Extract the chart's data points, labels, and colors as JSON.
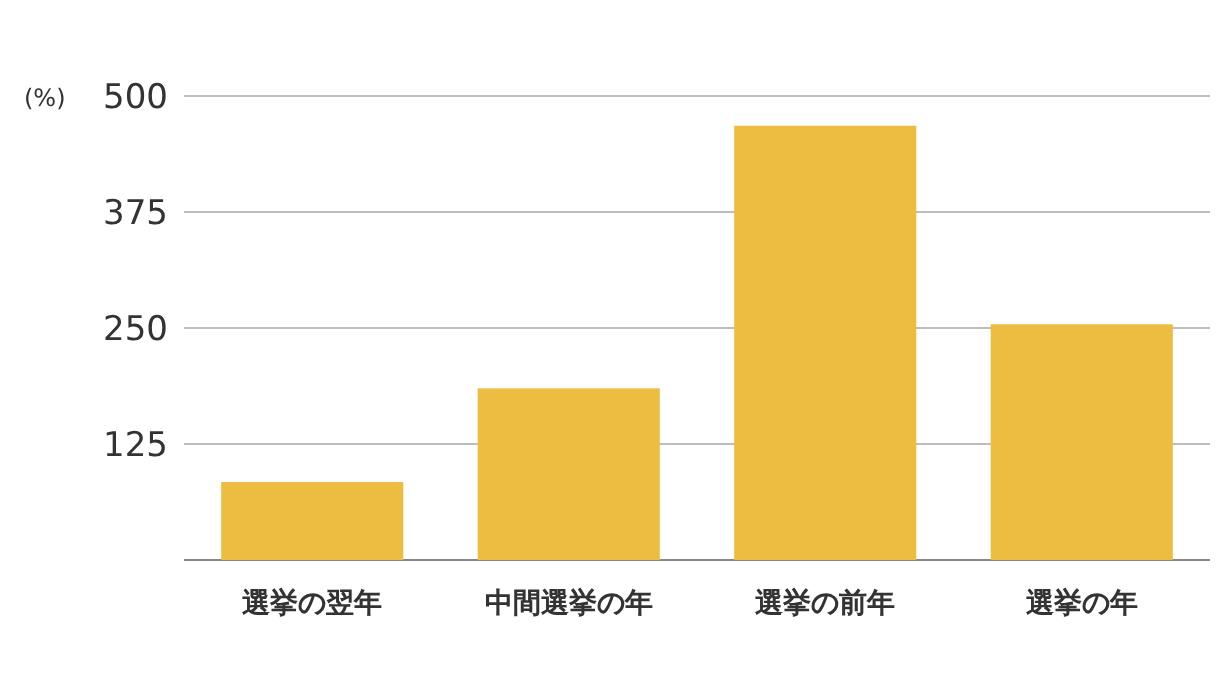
{
  "chart_data": {
    "type": "bar",
    "ylabel": "(%)",
    "categories": [
      "選挙の翌年",
      "中間選挙の年",
      "選挙の前年",
      "選挙の年"
    ],
    "values": [
      84,
      185,
      468,
      254
    ],
    "color": "#edbd42",
    "ylim": [
      0,
      500
    ],
    "yticks": [
      125,
      250,
      375,
      500
    ],
    "grid": "y"
  }
}
